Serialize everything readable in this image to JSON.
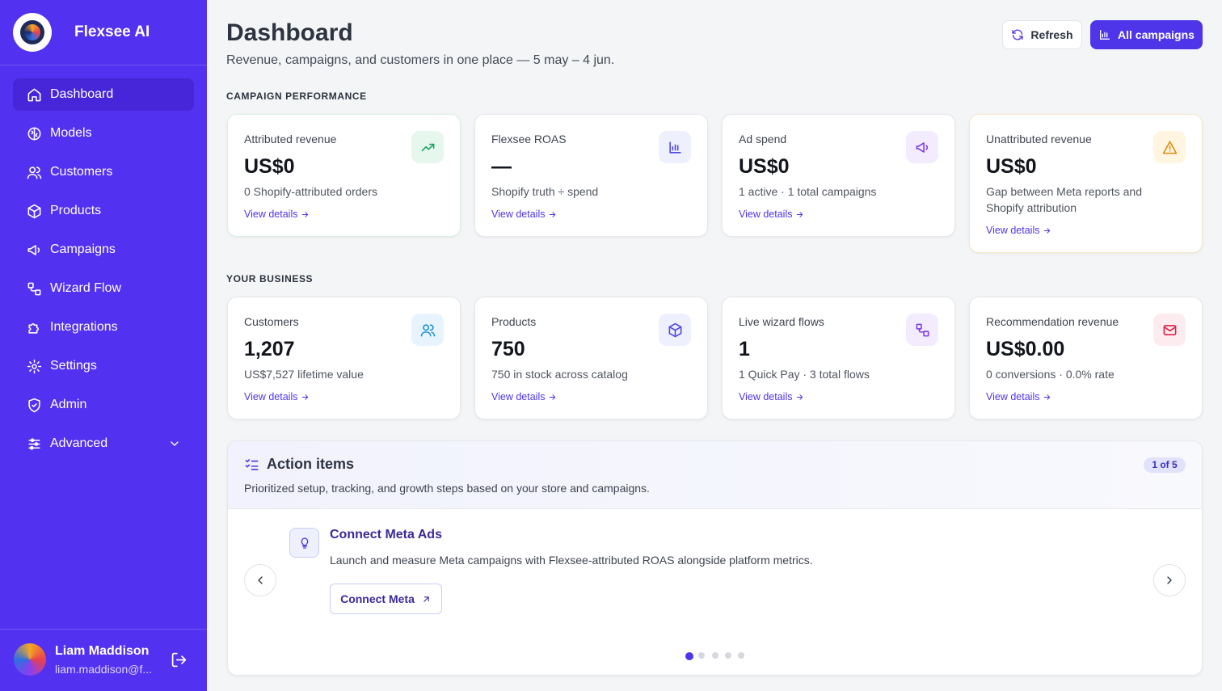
{
  "sidebar": {
    "brand": "Flexsee AI",
    "nav": [
      {
        "label": "Dashboard",
        "active": true
      },
      {
        "label": "Models"
      },
      {
        "label": "Customers"
      },
      {
        "label": "Products"
      },
      {
        "label": "Campaigns"
      },
      {
        "label": "Wizard Flow"
      },
      {
        "label": "Integrations"
      },
      {
        "label": "Settings"
      },
      {
        "label": "Admin"
      },
      {
        "label": "Advanced"
      }
    ],
    "user": {
      "name": "Liam Maddison",
      "email": "liam.maddison@f..."
    }
  },
  "header": {
    "title": "Dashboard",
    "subtitle": "Revenue, campaigns, and customers in one place — 5 may – 4 jun.",
    "buttons": [
      "Refresh",
      "All campaigns"
    ]
  },
  "sections": [
    {
      "title": "CAMPAIGN PERFORMANCE",
      "cards": [
        {
          "label": "Attributed revenue",
          "value": "US$0",
          "note": "0 Shopify-attributed orders",
          "link": "View details"
        },
        {
          "label": "Flexsee ROAS",
          "value": "—",
          "note": "Shopify truth ÷ spend",
          "link": "View details"
        },
        {
          "label": "Ad spend",
          "value": "US$0",
          "note": "1 active · 1 total campaigns",
          "link": "View details"
        },
        {
          "label": "Unattributed revenue",
          "value": "US$0",
          "note": "Gap between Meta reports and Shopify attribution",
          "link": "View details"
        }
      ]
    },
    {
      "title": "YOUR BUSINESS",
      "cards": [
        {
          "label": "Customers",
          "value": "1,207",
          "note": "US$7,527 lifetime value",
          "link": "View details"
        },
        {
          "label": "Products",
          "value": "750",
          "note": "750 in stock across catalog",
          "link": "View details"
        },
        {
          "label": "Live wizard flows",
          "value": "1",
          "note": "1 Quick Pay · 3 total flows",
          "link": "View details"
        },
        {
          "label": "Recommendation revenue",
          "value": "US$0.00",
          "note": "0 conversions · 0.0% rate",
          "link": "View details"
        }
      ]
    }
  ],
  "action_items": {
    "title": "Action items",
    "counter": "1 of 5",
    "description": "Prioritized setup, tracking, and growth steps based on your store and campaigns.",
    "item": {
      "title": "Connect Meta Ads",
      "text": "Launch and measure Meta campaigns with Flexsee-attributed ROAS alongside platform metrics.",
      "button": "Connect Meta"
    }
  }
}
